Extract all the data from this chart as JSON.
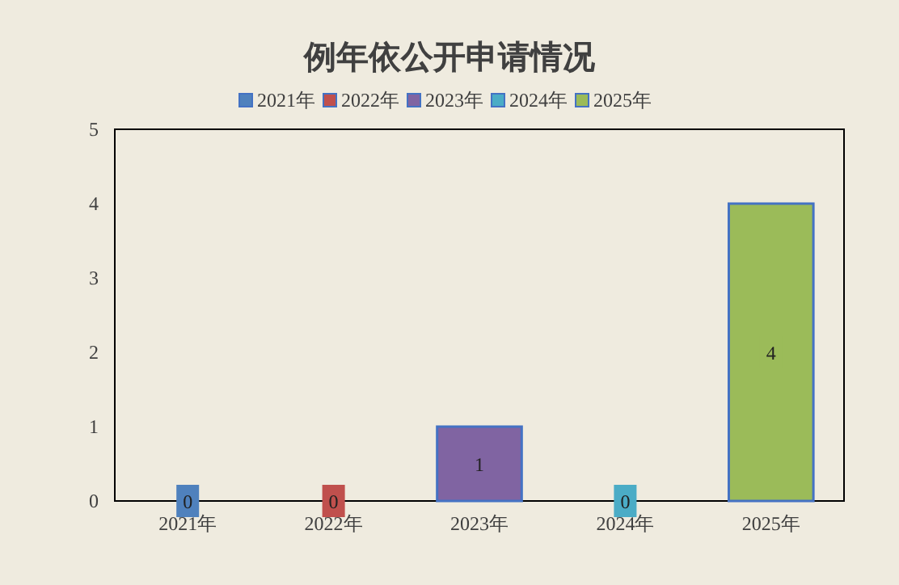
{
  "chart_data": {
    "type": "bar",
    "title": "例年依公开申请情况",
    "categories": [
      "2021年",
      "2022年",
      "2023年",
      "2024年",
      "2025年"
    ],
    "series": [
      {
        "name": "2021年",
        "color": "#4f81bd",
        "values": [
          0,
          null,
          null,
          null,
          null
        ]
      },
      {
        "name": "2022年",
        "color": "#c0504d",
        "values": [
          null,
          0,
          null,
          null,
          null
        ]
      },
      {
        "name": "2023年",
        "color": "#8064a2",
        "values": [
          null,
          null,
          1,
          null,
          null
        ]
      },
      {
        "name": "2024年",
        "color": "#4bacc6",
        "values": [
          null,
          null,
          null,
          0,
          null
        ]
      },
      {
        "name": "2025年",
        "color": "#9bbb59",
        "values": [
          null,
          null,
          null,
          null,
          4
        ]
      }
    ],
    "ylim": [
      0,
      5
    ],
    "yticks": [
      0,
      1,
      2,
      3,
      4,
      5
    ],
    "grid": false,
    "legend": "top",
    "data_labels": true
  }
}
